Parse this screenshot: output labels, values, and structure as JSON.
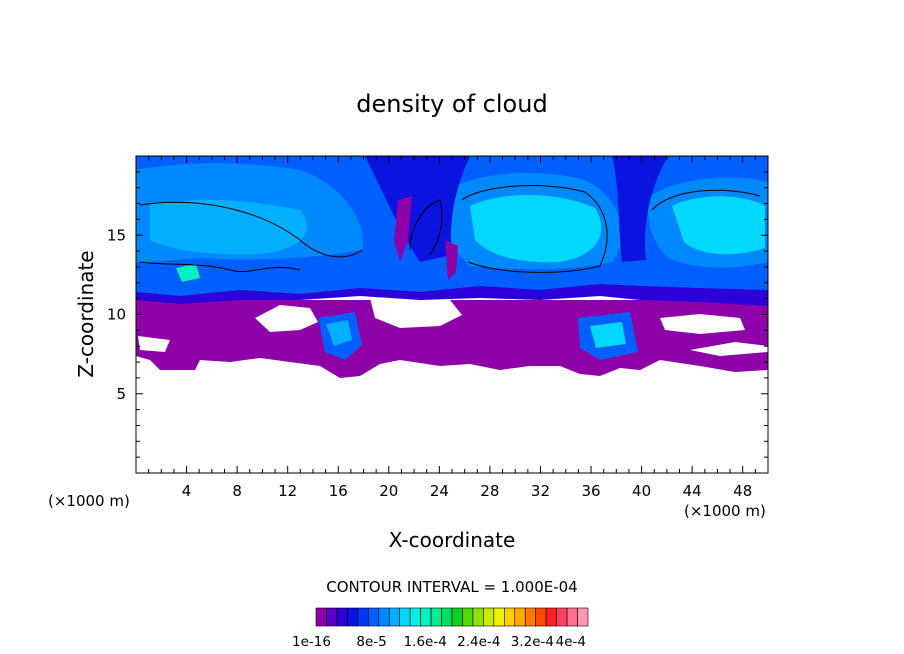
{
  "chart_data": {
    "type": "heatmap",
    "title": "density of cloud",
    "xlabel": "X-coordinate",
    "ylabel": "Z-coordinate",
    "x_unit": "(×1000 m)",
    "y_unit": "(×1000 m)",
    "xlim": [
      0,
      50
    ],
    "ylim": [
      0,
      20
    ],
    "x_ticks": [
      4,
      8,
      12,
      16,
      20,
      24,
      28,
      32,
      36,
      40,
      44,
      48
    ],
    "y_ticks": [
      5,
      10,
      15
    ],
    "contour_interval_label": "CONTOUR INTERVAL = 1.000E-04",
    "colorbar": {
      "labels": [
        "1e-16",
        "8e-5",
        "1.6e-4",
        "2.4e-4",
        "3.2e-4",
        "4e-4"
      ],
      "colors": [
        "#8e00a8",
        "#5a00c8",
        "#2c00d8",
        "#0a14e0",
        "#0038f0",
        "#0060ff",
        "#0088ff",
        "#00b0ff",
        "#00d8ff",
        "#00f0e8",
        "#00f0c0",
        "#00ee90",
        "#00e060",
        "#10d020",
        "#50dc00",
        "#90e400",
        "#c8ec00",
        "#f0f000",
        "#ffd000",
        "#ffaa00",
        "#ff7a00",
        "#ff4a00",
        "#ff2020",
        "#ff4060",
        "#ff7090",
        "#ff98b0"
      ]
    },
    "grid": false,
    "legend": "bottom"
  }
}
